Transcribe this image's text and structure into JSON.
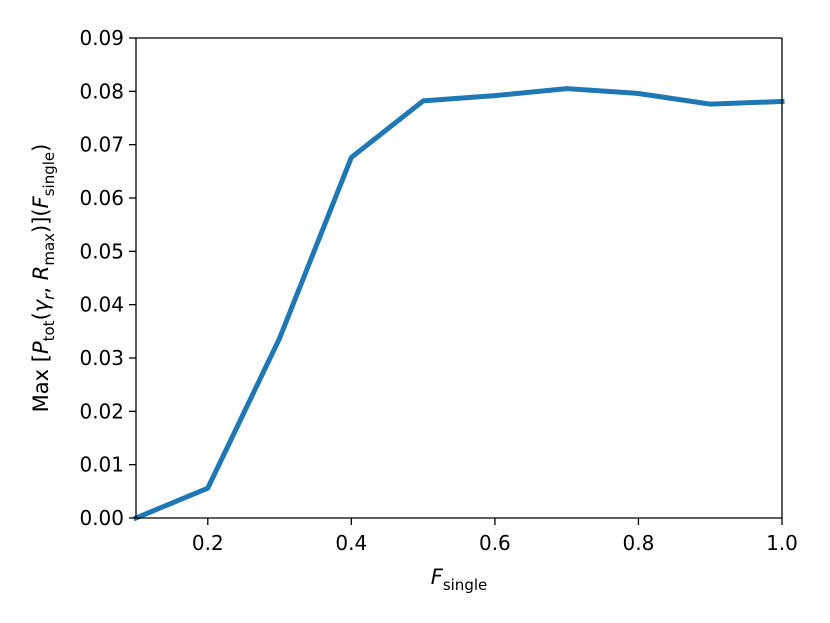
{
  "chart_data": {
    "type": "line",
    "title": "",
    "xlabel": {
      "main": "F",
      "sub": "single"
    },
    "ylabel": {
      "prefix": "Max [",
      "p": "P",
      "p_sub": "tot",
      "open": "(",
      "gamma": "γ",
      "gamma_sub": "r",
      "comma": ", ",
      "r": "R",
      "r_sub": "max",
      "close": ")](",
      "f": "F",
      "f_sub": "single",
      "end": ")"
    },
    "xlim": [
      0.1,
      1.0
    ],
    "ylim": [
      0.0,
      0.09
    ],
    "xticks": [
      "0.2",
      "0.4",
      "0.6",
      "0.8",
      "1.0"
    ],
    "yticks": [
      "0.00",
      "0.01",
      "0.02",
      "0.03",
      "0.04",
      "0.05",
      "0.06",
      "0.07",
      "0.08",
      "0.09"
    ],
    "grid": false,
    "series": [
      {
        "color": "#1f77b4",
        "x": [
          0.1,
          0.2,
          0.3,
          0.4,
          0.5,
          0.6,
          0.7,
          0.8,
          0.9,
          1.0
        ],
        "y": [
          0.0,
          0.0056,
          0.0337,
          0.0676,
          0.0782,
          0.0792,
          0.0805,
          0.0796,
          0.0776,
          0.0781
        ]
      }
    ]
  }
}
